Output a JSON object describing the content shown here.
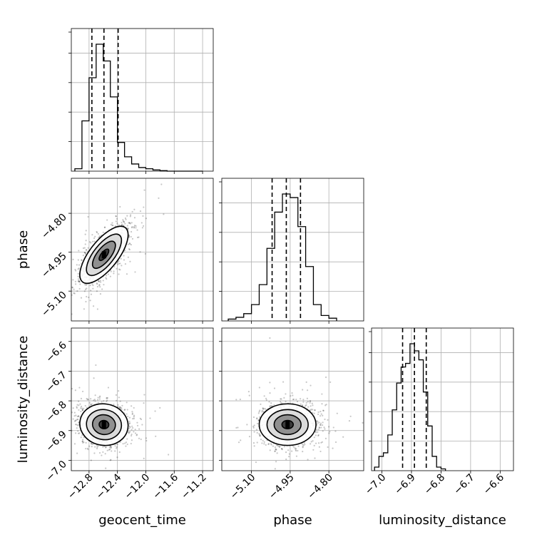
{
  "chart_data": {
    "type": "corner",
    "parameters": [
      "geocent_time",
      "phase",
      "luminosity_distance"
    ],
    "ranges": {
      "geocent_time": [
        -13.05,
        -11.05
      ],
      "phase": [
        -5.215,
        -4.665
      ],
      "luminosity_distance": [
        -7.035,
        -6.555
      ]
    },
    "ticks": {
      "geocent_time": [
        {
          "v": -12.8,
          "label": "−12.8"
        },
        {
          "v": -12.4,
          "label": "−12.4"
        },
        {
          "v": -12.0,
          "label": "−12.0"
        },
        {
          "v": -11.6,
          "label": "−11.6"
        },
        {
          "v": -11.2,
          "label": "−11.2"
        }
      ],
      "phase": [
        {
          "v": -5.1,
          "label": "−5.10"
        },
        {
          "v": -4.95,
          "label": "−4.95"
        },
        {
          "v": -4.8,
          "label": "−4.80"
        }
      ],
      "luminosity_distance": [
        {
          "v": -7.0,
          "label": "−7.0"
        },
        {
          "v": -6.9,
          "label": "−6.9"
        },
        {
          "v": -6.8,
          "label": "−6.8"
        },
        {
          "v": -6.7,
          "label": "−6.7"
        },
        {
          "v": -6.6,
          "label": "−6.6"
        }
      ]
    },
    "xlabels": [
      "geocent_time",
      "phase",
      "luminosity_distance"
    ],
    "ylabels": [
      "",
      "phase",
      "luminosity_distance"
    ],
    "quantiles": {
      "geocent_time": [
        -12.76,
        -12.59,
        -12.39
      ],
      "phase": [
        -5.02,
        -4.965,
        -4.91
      ],
      "luminosity_distance": [
        -6.93,
        -6.89,
        -6.85
      ]
    },
    "histograms": {
      "geocent_time": {
        "edges": [
          -13.0,
          -12.9,
          -12.8,
          -12.7,
          -12.6,
          -12.5,
          -12.4,
          -12.3,
          -12.2,
          -12.1,
          -12.0,
          -11.9,
          -11.8,
          -11.7,
          -11.6,
          -11.5,
          -11.4,
          -11.3,
          -11.2
        ],
        "counts": [
          1,
          21,
          39,
          53,
          46,
          31,
          12,
          6,
          3,
          1.5,
          1,
          0.5,
          0.2,
          0,
          0,
          0,
          0,
          0
        ]
      },
      "phase": {
        "edges": [
          -5.19,
          -5.16,
          -5.13,
          -5.1,
          -5.07,
          -5.04,
          -5.01,
          -4.98,
          -4.95,
          -4.92,
          -4.89,
          -4.86,
          -4.83,
          -4.8,
          -4.77
        ],
        "counts": [
          1,
          2,
          4,
          9,
          20,
          40,
          60,
          70,
          68,
          52,
          30,
          9,
          3,
          1.5
        ]
      },
      "luminosity_distance": {
        "edges": [
          -7.025,
          -7.01,
          -6.995,
          -6.98,
          -6.965,
          -6.95,
          -6.935,
          -6.92,
          -6.905,
          -6.89,
          -6.875,
          -6.86,
          -6.845,
          -6.83,
          -6.815,
          -6.8,
          -6.785
        ],
        "counts": [
          2,
          8,
          10,
          20,
          34,
          49,
          58,
          60,
          71,
          67,
          62,
          44,
          25,
          8,
          2,
          1
        ]
      }
    },
    "scatter_2d": {
      "geocent_time_vs_phase": {
        "mean": [
          -12.59,
          -4.96
        ],
        "sd": [
          0.17,
          0.055
        ],
        "corr": 0.7
      },
      "geocent_time_vs_luminosity_distance": {
        "mean": [
          -12.59,
          -6.88
        ],
        "sd": [
          0.17,
          0.035
        ],
        "corr": -0.05
      },
      "phase_vs_luminosity_distance": {
        "mean": [
          -4.96,
          -6.88
        ],
        "sd": [
          0.055,
          0.035
        ],
        "corr": 0.0
      }
    }
  }
}
